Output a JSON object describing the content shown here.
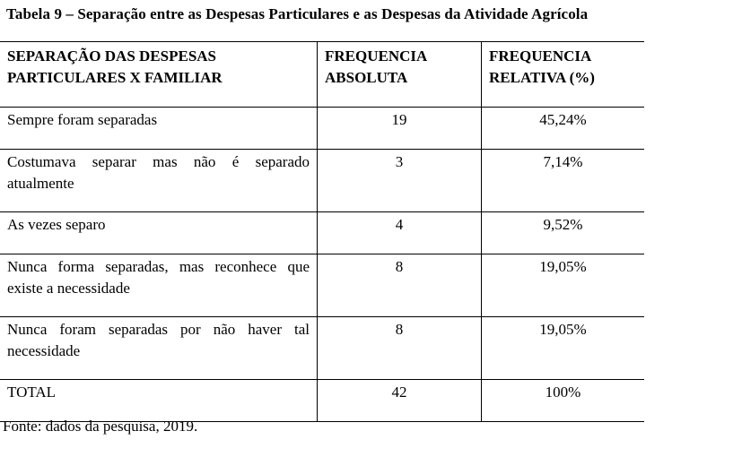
{
  "caption": "Tabela 9 – Separação entre as Despesas Particulares e as Despesas da Atividade Agrícola",
  "table": {
    "headers": [
      "SEPARAÇÃO DAS DESPESAS PARTICULARES X FAMILIAR",
      "FREQUENCIA ABSOLUTA",
      "FREQUENCIA RELATIVA (%)"
    ],
    "rows": [
      {
        "label": "Sempre foram separadas",
        "absoluta": "19",
        "relativa": "45,24%"
      },
      {
        "label": "Costumava separar mas não é separado atualmente",
        "absoluta": "3",
        "relativa": "7,14%"
      },
      {
        "label": "As vezes separo",
        "absoluta": "4",
        "relativa": "9,52%"
      },
      {
        "label": "Nunca forma separadas, mas reconhece que existe a necessidade",
        "absoluta": "8",
        "relativa": "19,05%"
      },
      {
        "label": "Nunca foram separadas por não haver tal necessidade",
        "absoluta": "8",
        "relativa": "19,05%"
      },
      {
        "label": "TOTAL",
        "absoluta": "42",
        "relativa": "100%"
      }
    ]
  },
  "source": "Fonte: dados da pesquisa, 2019."
}
